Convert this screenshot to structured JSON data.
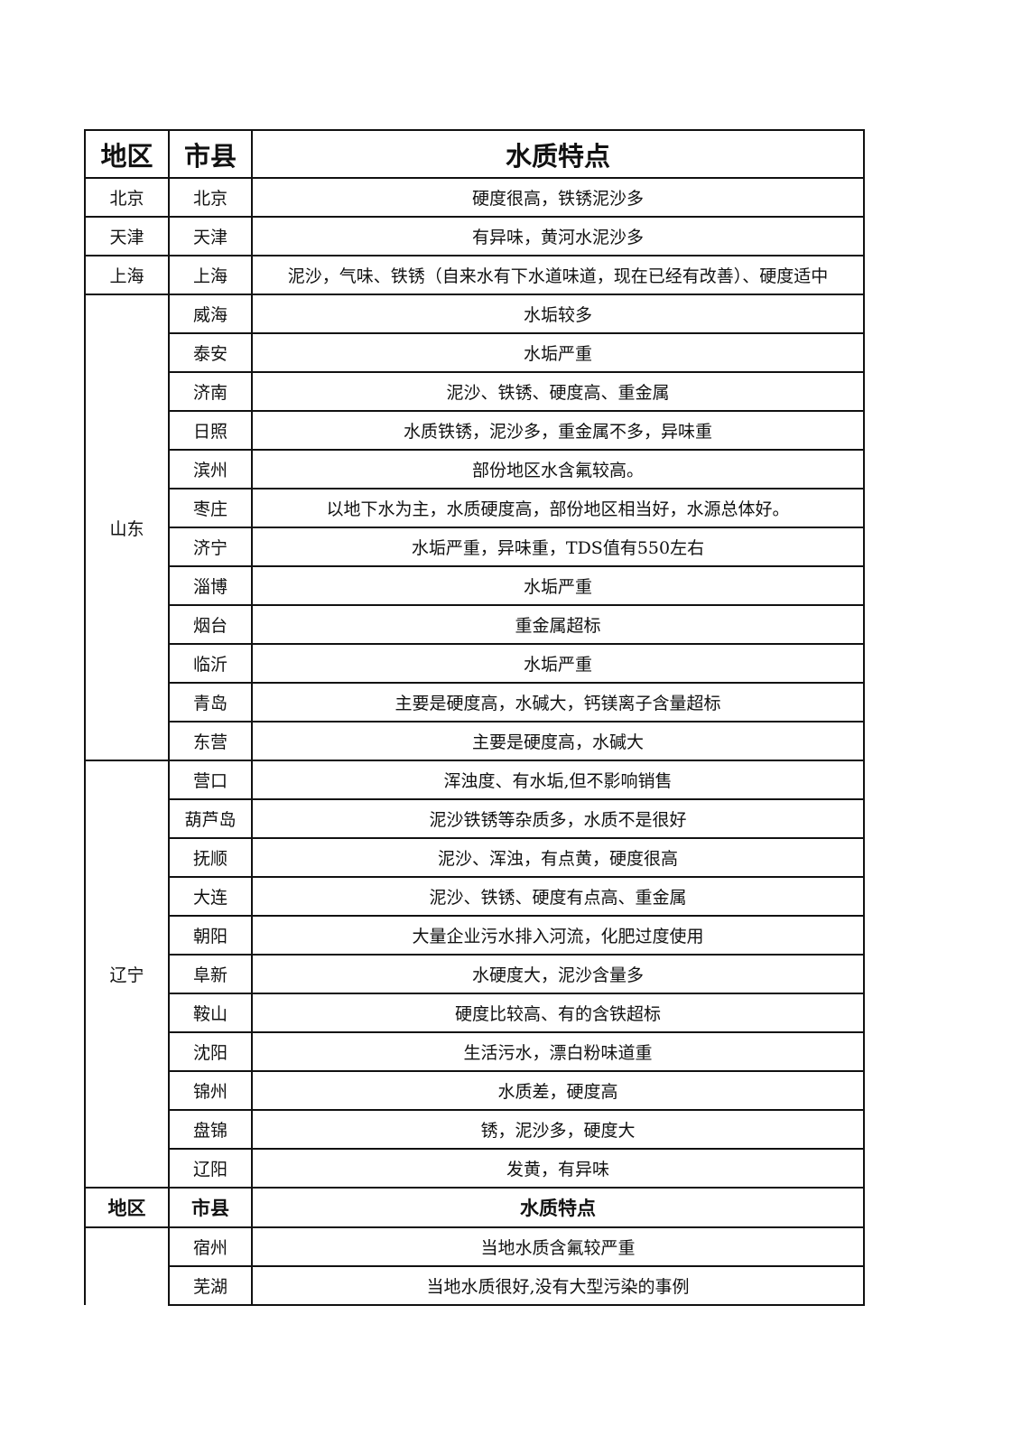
{
  "table": {
    "headers": [
      "地区",
      "市县",
      "水质特点"
    ],
    "groups": [
      {
        "region": "北京",
        "rows": [
          {
            "city": "北京",
            "desc": "硬度很高，铁锈泥沙多"
          }
        ]
      },
      {
        "region": "天津",
        "rows": [
          {
            "city": "天津",
            "desc": "有异味，黄河水泥沙多"
          }
        ]
      },
      {
        "region": "上海",
        "rows": [
          {
            "city": "上海",
            "desc": "泥沙，气味、铁锈（自来水有下水道味道，现在已经有改善）、硬度适中"
          }
        ]
      },
      {
        "region": "山东",
        "rows": [
          {
            "city": "威海",
            "desc": "水垢较多"
          },
          {
            "city": "泰安",
            "desc": "水垢严重"
          },
          {
            "city": "济南",
            "desc": "泥沙、铁锈、硬度高、重金属"
          },
          {
            "city": "日照",
            "desc": "水质铁锈，泥沙多，重金属不多，异味重"
          },
          {
            "city": "滨州",
            "desc": "部份地区水含氟较高。"
          },
          {
            "city": "枣庄",
            "desc": "以地下水为主，水质硬度高，部份地区相当好，水源总体好。"
          },
          {
            "city": "济宁",
            "desc": "水垢严重，异味重，TDS值有550左右"
          },
          {
            "city": "淄博",
            "desc": "水垢严重"
          },
          {
            "city": "烟台",
            "desc": "重金属超标"
          },
          {
            "city": "临沂",
            "desc": "水垢严重"
          },
          {
            "city": "青岛",
            "desc": "主要是硬度高，水碱大，钙镁离子含量超标"
          },
          {
            "city": "东营",
            "desc": "主要是硬度高，水碱大"
          }
        ]
      },
      {
        "region": "辽宁",
        "rows": [
          {
            "city": "营口",
            "desc": "浑浊度、有水垢,但不影响销售"
          },
          {
            "city": "葫芦岛",
            "desc": "泥沙铁锈等杂质多，水质不是很好"
          },
          {
            "city": "抚顺",
            "desc": "泥沙、浑浊，有点黄，硬度很高"
          },
          {
            "city": "大连",
            "desc": "泥沙、铁锈、硬度有点高、重金属"
          },
          {
            "city": "朝阳",
            "desc": "大量企业污水排入河流，化肥过度使用"
          },
          {
            "city": "阜新",
            "desc": "水硬度大，泥沙含量多"
          },
          {
            "city": "鞍山",
            "desc": "硬度比较高、有的含铁超标"
          },
          {
            "city": "沈阳",
            "desc": "生活污水，漂白粉味道重"
          },
          {
            "city": "锦州",
            "desc": "水质差，硬度高"
          },
          {
            "city": "盘锦",
            "desc": "锈，泥沙多，硬度大"
          },
          {
            "city": "辽阳",
            "desc": "发黄，有异味"
          }
        ]
      }
    ],
    "continuation": {
      "headers": [
        "地区",
        "市县",
        "水质特点"
      ],
      "region": "",
      "rows": [
        {
          "city": "宿州",
          "desc": "当地水质含氟较严重"
        },
        {
          "city": "芜湖",
          "desc": "当地水质很好,没有大型污染的事例"
        }
      ]
    }
  }
}
